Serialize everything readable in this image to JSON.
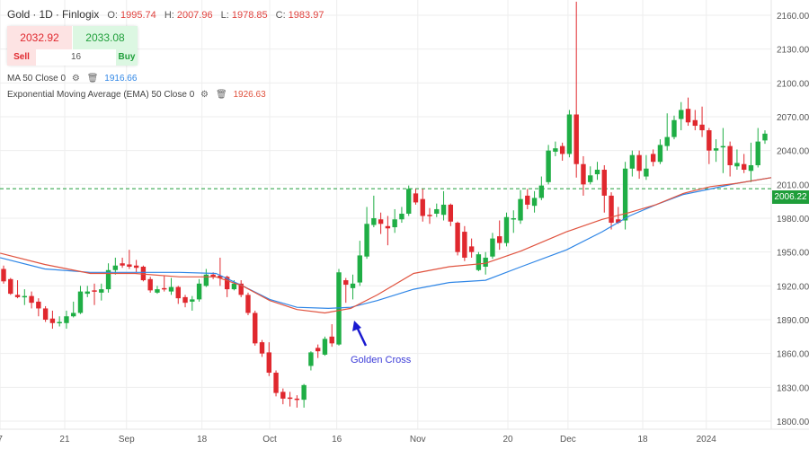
{
  "header": {
    "symbol": "Gold",
    "timeframe": "1D",
    "source": "Finlogix",
    "sep": "·",
    "open_label": "O:",
    "open": "1995.74",
    "high_label": "H:",
    "high": "2007.96",
    "low_label": "L:",
    "low": "1978.85",
    "close_label": "C:",
    "close": "1983.97"
  },
  "trade": {
    "sell_price": "2032.92",
    "buy_price": "2033.08",
    "sell_label": "Sell",
    "buy_label": "Buy",
    "quantity": "16"
  },
  "indicators": [
    {
      "label": "MA 50 Close 0",
      "value": "1916.66",
      "color": "#2f86e6",
      "icons": [
        "gear-icon",
        "trash-icon"
      ]
    },
    {
      "label": "Exponential Moving Average (EMA) 50 Close 0",
      "value": "1926.63",
      "color": "#e0533f",
      "icons": [
        "gear-icon",
        "trash-icon"
      ]
    }
  ],
  "annotation": {
    "text": "Golden Cross",
    "color": "#3c3cd8"
  },
  "current_price": "2006.22",
  "chart_data": {
    "type": "candlestick",
    "ylim": [
      1790,
      2175
    ],
    "y_ticks": [
      "1800.00",
      "1830.00",
      "1860.00",
      "1890.00",
      "1920.00",
      "1950.00",
      "1980.00",
      "2010.00",
      "2040.00",
      "2070.00",
      "2100.00",
      "2130.00",
      "2160.00"
    ],
    "x_ticks": [
      {
        "label": "7",
        "i": -0.5
      },
      {
        "label": "21",
        "i": 8.75
      },
      {
        "label": "Sep",
        "i": 17.6
      },
      {
        "label": "18",
        "i": 28.4
      },
      {
        "label": "Oct",
        "i": 38.1
      },
      {
        "label": "16",
        "i": 47.7
      },
      {
        "label": "Nov",
        "i": 59.3
      },
      {
        "label": "20",
        "i": 72.2
      },
      {
        "label": "Dec",
        "i": 80.8
      },
      {
        "label": "18",
        "i": 91.5
      },
      {
        "label": "2024",
        "i": 100.6
      }
    ],
    "colors": {
      "up": "#1fae45",
      "down": "#e0282e"
    },
    "ohlc": [
      [
        1935,
        1938,
        1922,
        1924
      ],
      [
        1926,
        1927,
        1912,
        1913
      ],
      [
        1912,
        1925,
        1909,
        1910
      ],
      [
        1910,
        1917,
        1903,
        1911
      ],
      [
        1911,
        1915,
        1900,
        1905
      ],
      [
        1906,
        1909,
        1893,
        1900
      ],
      [
        1900,
        1902,
        1888,
        1890
      ],
      [
        1891,
        1898,
        1882,
        1887
      ],
      [
        1887,
        1893,
        1884,
        1888
      ],
      [
        1887,
        1898,
        1882,
        1893
      ],
      [
        1893,
        1906,
        1892,
        1896
      ],
      [
        1896,
        1920,
        1895,
        1915
      ],
      [
        1913,
        1920,
        1910,
        1915
      ],
      [
        1916,
        1922,
        1903,
        1915
      ],
      [
        1914,
        1922,
        1907,
        1917
      ],
      [
        1917,
        1940,
        1914,
        1934
      ],
      [
        1934,
        1945,
        1930,
        1938
      ],
      [
        1940,
        1945,
        1936,
        1938
      ],
      [
        1939,
        1952,
        1935,
        1937
      ],
      [
        1938,
        1943,
        1932,
        1936
      ],
      [
        1937,
        1938,
        1924,
        1925
      ],
      [
        1926,
        1928,
        1914,
        1916
      ],
      [
        1914,
        1920,
        1913,
        1917
      ],
      [
        1918,
        1929,
        1915,
        1917
      ],
      [
        1915,
        1927,
        1912,
        1919
      ],
      [
        1919,
        1920,
        1904,
        1909
      ],
      [
        1910,
        1912,
        1901,
        1905
      ],
      [
        1906,
        1911,
        1898,
        1908
      ],
      [
        1908,
        1926,
        1906,
        1922
      ],
      [
        1920,
        1935,
        1919,
        1930
      ],
      [
        1930,
        1932,
        1926,
        1928
      ],
      [
        1929,
        1945,
        1920,
        1927
      ],
      [
        1928,
        1929,
        1910,
        1917
      ],
      [
        1917,
        1925,
        1916,
        1922
      ],
      [
        1922,
        1925,
        1910,
        1912
      ],
      [
        1912,
        1914,
        1894,
        1896
      ],
      [
        1896,
        1898,
        1867,
        1869
      ],
      [
        1870,
        1872,
        1857,
        1860
      ],
      [
        1861,
        1870,
        1840,
        1843
      ],
      [
        1843,
        1845,
        1822,
        1825
      ],
      [
        1826,
        1829,
        1815,
        1820
      ],
      [
        1821,
        1826,
        1813,
        1820
      ],
      [
        1820,
        1823,
        1812,
        1819
      ],
      [
        1819,
        1833,
        1812,
        1832
      ],
      [
        1849,
        1862,
        1845,
        1861
      ],
      [
        1865,
        1868,
        1856,
        1862
      ],
      [
        1859,
        1875,
        1858,
        1873
      ],
      [
        1875,
        1886,
        1866,
        1869
      ],
      [
        1868,
        1935,
        1867,
        1932
      ],
      [
        1925,
        1927,
        1905,
        1921
      ],
      [
        1918,
        1930,
        1908,
        1922
      ],
      [
        1923,
        1960,
        1920,
        1947
      ],
      [
        1946,
        1990,
        1944,
        1975
      ],
      [
        1974,
        2000,
        1972,
        1980
      ],
      [
        1979,
        1985,
        1966,
        1975
      ],
      [
        1973,
        1982,
        1956,
        1971
      ],
      [
        1972,
        1988,
        1967,
        1979
      ],
      [
        1979,
        1990,
        1976,
        1984
      ],
      [
        1984,
        2009,
        1982,
        2006
      ],
      [
        2002,
        2006,
        1992,
        1994
      ],
      [
        1997,
        2006,
        1977,
        1982
      ],
      [
        1983,
        1989,
        1975,
        1982
      ],
      [
        1984,
        1993,
        1981,
        1988
      ],
      [
        1983,
        2004,
        1978,
        1992
      ],
      [
        1992,
        1993,
        1973,
        1977
      ],
      [
        1976,
        1977,
        1947,
        1950
      ],
      [
        1968,
        1973,
        1942,
        1945
      ],
      [
        1955,
        1962,
        1945,
        1950
      ],
      [
        1934,
        1950,
        1933,
        1948
      ],
      [
        1937,
        1950,
        1930,
        1945
      ],
      [
        1946,
        1967,
        1944,
        1962
      ],
      [
        1964,
        1978,
        1952,
        1958
      ],
      [
        1958,
        1985,
        1955,
        1981
      ],
      [
        1979,
        1987,
        1967,
        1980
      ],
      [
        1978,
        2005,
        1975,
        1997
      ],
      [
        2000,
        2006,
        1988,
        1992
      ],
      [
        1991,
        2004,
        1985,
        1998
      ],
      [
        1998,
        2017,
        1996,
        2009
      ],
      [
        2012,
        2045,
        2010,
        2040
      ],
      [
        2039,
        2048,
        2035,
        2042
      ],
      [
        2044,
        2047,
        2031,
        2037
      ],
      [
        2037,
        2076,
        2034,
        2072
      ],
      [
        2072,
        2172,
        2016,
        2028
      ],
      [
        2028,
        2035,
        2000,
        2010
      ],
      [
        2012,
        2026,
        2010,
        2018
      ],
      [
        2019,
        2030,
        2014,
        2023
      ],
      [
        2023,
        2027,
        1985,
        2000
      ],
      [
        2000,
        2003,
        1970,
        1976
      ],
      [
        1979,
        1990,
        1975,
        1976
      ],
      [
        1978,
        2030,
        1970,
        2024
      ],
      [
        2024,
        2040,
        2017,
        2036
      ],
      [
        2036,
        2040,
        2015,
        2022
      ],
      [
        2017,
        2036,
        2014,
        2024
      ],
      [
        2037,
        2041,
        2026,
        2030
      ],
      [
        2030,
        2050,
        2028,
        2045
      ],
      [
        2044,
        2073,
        2040,
        2052
      ],
      [
        2052,
        2071,
        2050,
        2067
      ],
      [
        2068,
        2083,
        2058,
        2076
      ],
      [
        2077,
        2087,
        2062,
        2065
      ],
      [
        2067,
        2076,
        2058,
        2062
      ],
      [
        2063,
        2079,
        2052,
        2058
      ],
      [
        2058,
        2060,
        2028,
        2040
      ],
      [
        2040,
        2050,
        2030,
        2042
      ],
      [
        2044,
        2060,
        2020,
        2044
      ],
      [
        2044,
        2048,
        2017,
        2027
      ],
      [
        2026,
        2041,
        2023,
        2029
      ],
      [
        2028,
        2037,
        2020,
        2023
      ],
      [
        2022,
        2047,
        2012,
        2027
      ],
      [
        2027,
        2060,
        2025,
        2048
      ],
      [
        2049,
        2058,
        2046,
        2055
      ]
    ],
    "series": [
      {
        "name": "MA 50",
        "color": "#2f86e6",
        "points": [
          [
            -0.5,
            1945
          ],
          [
            5.9,
            1935
          ],
          [
            12.4,
            1932
          ],
          [
            18.8,
            1932
          ],
          [
            25.2,
            1932
          ],
          [
            30.4,
            1931
          ],
          [
            34.2,
            1920
          ],
          [
            38.1,
            1908
          ],
          [
            42,
            1901
          ],
          [
            46.5,
            1900
          ],
          [
            49.7,
            1901
          ],
          [
            53.5,
            1907
          ],
          [
            58.7,
            1917
          ],
          [
            63.8,
            1923
          ],
          [
            69,
            1925
          ],
          [
            74.1,
            1937
          ],
          [
            80.6,
            1952
          ],
          [
            85.7,
            1968
          ],
          [
            89.6,
            1982
          ],
          [
            93.4,
            1992
          ],
          [
            97.3,
            2001
          ],
          [
            101.2,
            2006
          ],
          [
            105,
            2011
          ],
          [
            109.9,
            2016
          ]
        ]
      },
      {
        "name": "EMA 50",
        "color": "#e0533f",
        "points": [
          [
            -0.5,
            1949
          ],
          [
            5.9,
            1939
          ],
          [
            12.4,
            1931
          ],
          [
            18.8,
            1931
          ],
          [
            25.2,
            1928
          ],
          [
            30.4,
            1928
          ],
          [
            34.2,
            1920
          ],
          [
            38.1,
            1907
          ],
          [
            42,
            1899
          ],
          [
            46,
            1896
          ],
          [
            49.7,
            1900
          ],
          [
            53.5,
            1912
          ],
          [
            58.7,
            1931
          ],
          [
            63.8,
            1937
          ],
          [
            69,
            1940
          ],
          [
            74.1,
            1951
          ],
          [
            80.6,
            1968
          ],
          [
            85.7,
            1979
          ],
          [
            89.6,
            1985
          ],
          [
            93.4,
            1992
          ],
          [
            97.3,
            2002
          ],
          [
            101.2,
            2008
          ],
          [
            105,
            2011
          ],
          [
            109.9,
            2016
          ]
        ]
      }
    ]
  }
}
